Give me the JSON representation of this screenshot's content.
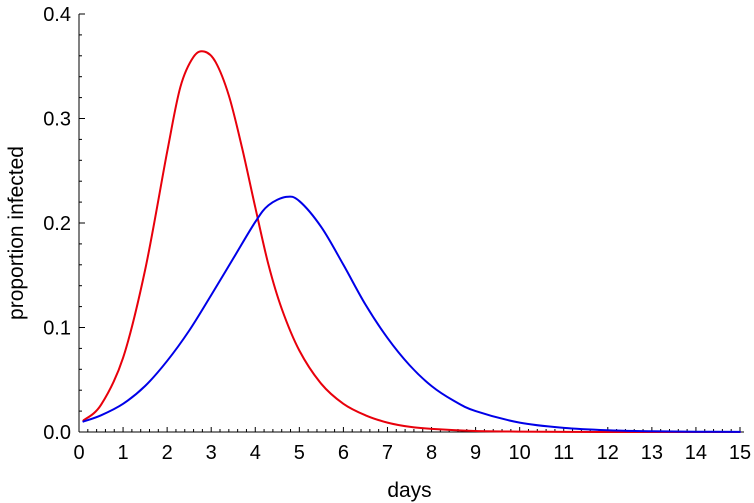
{
  "chart_data": {
    "type": "line",
    "title": "",
    "xlabel": "days",
    "ylabel": "proportion infected",
    "xlim": [
      0,
      15
    ],
    "ylim": [
      0,
      0.4
    ],
    "x_ticks": [
      0,
      1,
      2,
      3,
      4,
      5,
      6,
      7,
      8,
      9,
      10,
      11,
      12,
      13,
      14,
      15
    ],
    "y_ticks": [
      0,
      0.1,
      0.2,
      0.3,
      0.4
    ],
    "y_tick_labels": [
      "0.0",
      "0.1",
      "0.2",
      "0.3",
      "0.4"
    ],
    "grid": false,
    "legend": "none",
    "series": [
      {
        "color": "#e8000b",
        "x": [
          0.1,
          0.5,
          1.0,
          1.5,
          2.0,
          2.3,
          2.6,
          2.85,
          3.1,
          3.4,
          3.7,
          4.0,
          4.3,
          4.6,
          5.0,
          5.5,
          6.0,
          6.5,
          7.0,
          7.5,
          8.0,
          9.0,
          10.0,
          11.0,
          12.0,
          13.0,
          14.0,
          15.0
        ],
        "y": [
          0.011,
          0.026,
          0.071,
          0.155,
          0.268,
          0.33,
          0.359,
          0.364,
          0.354,
          0.322,
          0.272,
          0.215,
          0.16,
          0.118,
          0.078,
          0.046,
          0.027,
          0.016,
          0.009,
          0.005,
          0.003,
          0.001,
          0.0004,
          0.0001,
          0.0,
          0.0,
          0.0,
          0.0
        ]
      },
      {
        "color": "#0000e8",
        "x": [
          0.1,
          0.5,
          1.0,
          1.5,
          2.0,
          2.5,
          3.0,
          3.5,
          4.0,
          4.3,
          4.7,
          5.0,
          5.5,
          6.0,
          6.5,
          7.0,
          7.5,
          8.0,
          8.5,
          9.0,
          10.0,
          11.0,
          12.0,
          13.0,
          14.0,
          15.0
        ],
        "y": [
          0.01,
          0.016,
          0.027,
          0.044,
          0.068,
          0.097,
          0.131,
          0.166,
          0.201,
          0.217,
          0.225,
          0.221,
          0.196,
          0.16,
          0.122,
          0.09,
          0.064,
          0.044,
          0.03,
          0.02,
          0.009,
          0.004,
          0.0017,
          0.0007,
          0.0003,
          0.0001
        ]
      }
    ]
  }
}
